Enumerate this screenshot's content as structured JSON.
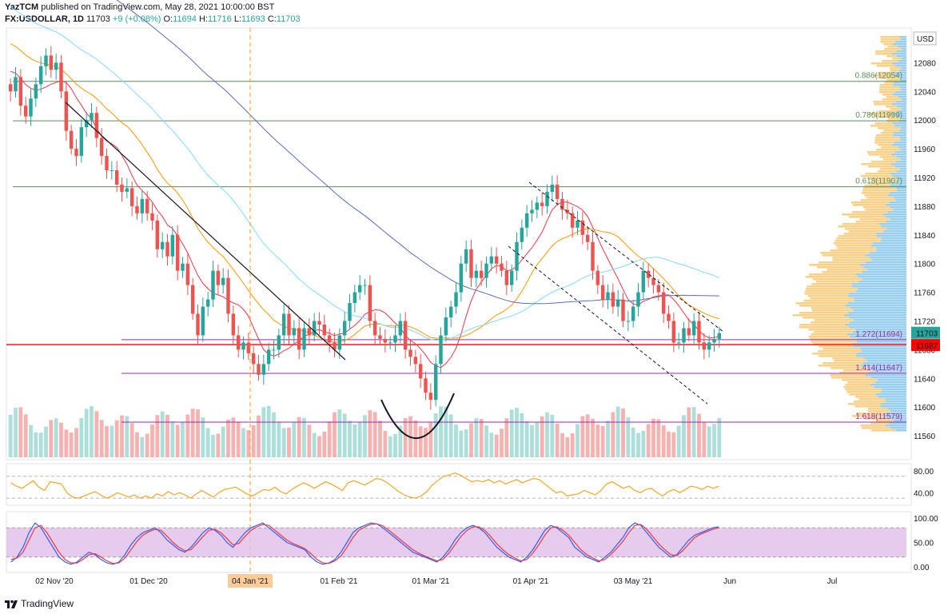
{
  "header": {
    "author": "YazTCM",
    "published": "published on TradingView.com, May 28, 2021 10:00:00 BST",
    "symbol": "FX:USDOLLAR, 1D",
    "last": "11703",
    "change": "+9 (+0.08%)",
    "o_label": "O:",
    "o_value": "11694",
    "h_label": "H:",
    "h_value": "11716",
    "l_label": "L:",
    "l_value": "11693",
    "c_label": "C:",
    "c_value": "11703"
  },
  "footer": {
    "brand": "TradingView"
  },
  "colors": {
    "up": "#26a69a",
    "down": "#ef5350",
    "fib": "#5b8c5a",
    "fib_ext": "#9c27b0",
    "ma20": "#f23645",
    "ma50": "#ff9800",
    "ma100": "#7fdbff",
    "ma200": "#5c6bc0",
    "rsi": "#f5a623",
    "stoch_k": "#2962ff",
    "stoch_d": "#f23645",
    "stoch_band": "#e1bee7"
  },
  "chart_data": [
    {
      "type": "candlestick",
      "title": "FX:USDOLLAR, 1D",
      "currency": "USD",
      "x_ticks": [
        "02 Nov '20",
        "01 Dec '20",
        "04 Jan '21",
        "01 Feb '21",
        "01 Mar '21",
        "01 Apr '21",
        "03 May '21",
        "Jun",
        "Jul"
      ],
      "highlighted_x_tick": "04 Jan '21",
      "y_ticks": [
        "12080",
        "12040",
        "12000",
        "11960",
        "11920",
        "11880",
        "11840",
        "11800",
        "11760",
        "11720",
        "11680",
        "11640",
        "11600",
        "11560"
      ],
      "y_ticks_values": [
        12080,
        12040,
        12000,
        11960,
        11920,
        11880,
        11840,
        11800,
        11760,
        11720,
        11680,
        11640,
        11600,
        11560
      ],
      "ylim": [
        11530,
        12125
      ],
      "last_price_label": "11703",
      "red_line_label": "11687",
      "fib_levels": [
        {
          "label": "0.886(12054)",
          "value": 12054
        },
        {
          "label": "0.786(11999)",
          "value": 11999
        },
        {
          "label": "0.618(11907)",
          "value": 11907
        },
        {
          "label": "1.272(11694)",
          "value": 11694
        },
        {
          "label": "1.414(11647)",
          "value": 11647
        },
        {
          "label": "1.618(11579)",
          "value": 11579
        }
      ],
      "closes": [
        12040,
        12060,
        12020,
        12005,
        12030,
        12050,
        12075,
        12090,
        12070,
        12080,
        12040,
        11985,
        11960,
        11950,
        11990,
        12000,
        12010,
        11975,
        11950,
        11930,
        11930,
        11910,
        11900,
        11905,
        11880,
        11870,
        11890,
        11870,
        11860,
        11820,
        11830,
        11810,
        11840,
        11790,
        11800,
        11770,
        11730,
        11700,
        11740,
        11750,
        11790,
        11770,
        11780,
        11730,
        11700,
        11680,
        11690,
        11675,
        11660,
        11645,
        11660,
        11680,
        11680,
        11700,
        11730,
        11700,
        11710,
        11680,
        11710,
        11700,
        11720,
        11715,
        11700,
        11690,
        11680,
        11700,
        11720,
        11745,
        11760,
        11770,
        11770,
        11720,
        11700,
        11695,
        11690,
        11690,
        11700,
        11720,
        11680,
        11670,
        11660,
        11640,
        11620,
        11610,
        11660,
        11700,
        11725,
        11740,
        11760,
        11800,
        11820,
        11780,
        11790,
        11780,
        11800,
        11810,
        11800,
        11790,
        11770,
        11790,
        11830,
        11850,
        11870,
        11875,
        11885,
        11880,
        11900,
        11910,
        11890,
        11875,
        11870,
        11850,
        11860,
        11840,
        11830,
        11790,
        11770,
        11750,
        11760,
        11740,
        11750,
        11720,
        11720,
        11740,
        11760,
        11790,
        11780,
        11770,
        11760,
        11730,
        11720,
        11690,
        11690,
        11710,
        11700,
        11720,
        11690,
        11680,
        11690,
        11695,
        11703
      ],
      "indicators": [
        "MA 20",
        "MA 50",
        "MA 100",
        "MA 200",
        "Volume Profile",
        "Volume"
      ]
    },
    {
      "type": "line",
      "title": "",
      "y_ticks": [
        "80.00",
        "40.00"
      ],
      "ylim": [
        20,
        90
      ],
      "values": [
        58,
        52,
        48,
        55,
        62,
        50,
        44,
        60,
        58,
        56,
        40,
        32,
        30,
        34,
        38,
        42,
        36,
        30,
        34,
        40,
        36,
        32,
        36,
        30,
        34,
        30,
        38,
        34,
        42,
        36,
        40,
        36,
        30,
        38,
        44,
        38,
        32,
        40,
        46,
        48,
        50,
        44,
        38,
        34,
        40,
        46,
        44,
        50,
        42,
        38,
        46,
        52,
        58,
        54,
        48,
        54,
        60,
        56,
        50,
        44,
        58,
        62,
        58,
        54,
        60,
        66,
        64,
        58,
        50,
        42,
        36,
        32,
        30,
        34,
        42,
        54,
        62,
        70,
        72,
        76,
        72,
        66,
        60,
        62,
        60,
        64,
        58,
        62,
        56,
        60,
        64,
        58,
        62,
        66,
        64,
        56,
        48,
        40,
        42,
        34,
        36,
        38,
        44,
        40,
        36,
        44,
        56,
        60,
        54,
        48,
        52,
        44,
        40,
        46,
        48,
        40,
        34,
        42,
        46,
        40,
        46,
        52,
        50,
        46,
        52,
        48,
        52
      ],
      "indicator": "RSI"
    },
    {
      "type": "line",
      "title": "",
      "y_ticks": [
        "100.00",
        "50.00",
        "0.00"
      ],
      "ylim": [
        -5,
        105
      ],
      "band": [
        20,
        80
      ],
      "series": [
        {
          "values": [
            10,
            20,
            40,
            70,
            90,
            80,
            60,
            40,
            20,
            10,
            5,
            10,
            20,
            30,
            25,
            15,
            8,
            5,
            10,
            25,
            45,
            60,
            70,
            75,
            80,
            70,
            55,
            45,
            35,
            30,
            40,
            55,
            70,
            80,
            75,
            65,
            50,
            40,
            55,
            70,
            80,
            85,
            90,
            80,
            70,
            60,
            50,
            45,
            40,
            35,
            20,
            10,
            5,
            8,
            15,
            30,
            50,
            70,
            80,
            85,
            90,
            88,
            80,
            70,
            60,
            50,
            40,
            30,
            25,
            20,
            15,
            10,
            20,
            35,
            55,
            70,
            80,
            85,
            80,
            70,
            55,
            40,
            30,
            20,
            15,
            10,
            20,
            35,
            55,
            75,
            85,
            80,
            70,
            60,
            40,
            30,
            20,
            15,
            10,
            20,
            30,
            45,
            60,
            80,
            90,
            85,
            70,
            55,
            40,
            30,
            20,
            25,
            40,
            55,
            65,
            70,
            75,
            80,
            82
          ]
        },
        {
          "values": [
            15,
            18,
            30,
            55,
            80,
            85,
            70,
            50,
            30,
            15,
            8,
            8,
            15,
            25,
            27,
            20,
            12,
            7,
            8,
            18,
            35,
            52,
            65,
            72,
            77,
            75,
            63,
            50,
            40,
            33,
            35,
            48,
            62,
            75,
            77,
            70,
            58,
            45,
            48,
            62,
            75,
            82,
            87,
            85,
            75,
            65,
            55,
            48,
            43,
            37,
            27,
            15,
            8,
            7,
            12,
            22,
            40,
            60,
            75,
            82,
            87,
            88,
            84,
            75,
            65,
            55,
            45,
            35,
            28,
            22,
            17,
            12,
            15,
            28,
            45,
            62,
            75,
            82,
            82,
            75,
            62,
            47,
            35,
            25,
            18,
            12,
            15,
            28,
            45,
            65,
            80,
            82,
            75,
            65,
            50,
            35,
            25,
            18,
            12,
            15,
            25,
            38,
            52,
            70,
            85,
            87,
            77,
            62,
            47,
            35,
            25,
            23,
            33,
            47,
            60,
            67,
            72,
            77,
            80
          ]
        }
      ],
      "indicator": "Stochastic RSI"
    }
  ]
}
